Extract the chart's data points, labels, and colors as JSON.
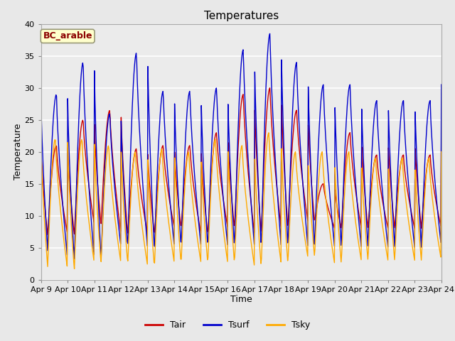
{
  "title": "Temperatures",
  "xlabel": "Time",
  "ylabel": "Temperature",
  "annotation": "BC_arable",
  "legend_labels": [
    "Tair",
    "Tsurf",
    "Tsky"
  ],
  "line_colors": [
    "#cc0000",
    "#0000cc",
    "#ffaa00"
  ],
  "fig_bg_color": "#e8e8e8",
  "plot_bg_color": "#ebebeb",
  "ylim": [
    0,
    40
  ],
  "tick_labels": [
    "Apr 9",
    "Apr 10",
    "Apr 11",
    "Apr 12",
    "Apr 13",
    "Apr 14",
    "Apr 15",
    "Apr 16",
    "Apr 17",
    "Apr 18",
    "Apr 19",
    "Apr 20",
    "Apr 21",
    "Apr 22",
    "Apr 23",
    "Apr 24"
  ],
  "yticks": [
    0,
    5,
    10,
    15,
    20,
    25,
    30,
    35,
    40
  ],
  "tsurf_peaks": [
    29,
    34,
    26,
    35.5,
    29.5,
    29.5,
    30,
    36,
    38.5,
    34,
    30.5,
    30.5,
    28
  ],
  "tair_peaks": [
    21,
    25,
    26.5,
    20.5,
    21,
    21,
    23,
    29,
    30,
    26.5,
    15,
    23,
    19.5
  ],
  "tsky_peaks": [
    22,
    22,
    21,
    20,
    20.5,
    20,
    22,
    21,
    23,
    20,
    20,
    20,
    19
  ],
  "trough_tsurf": [
    4.5,
    3,
    3,
    5,
    4.5,
    5,
    5,
    5,
    5,
    5,
    5,
    5,
    5
  ],
  "trough_tair": [
    7,
    7,
    8.5,
    7,
    7,
    8,
    7,
    8,
    7,
    8,
    9,
    8,
    8
  ],
  "trough_tsky": [
    2,
    1.5,
    2.5,
    2.5,
    2,
    2.5,
    2.5,
    2.5,
    2,
    2.5,
    3.5,
    2.5,
    3
  ]
}
